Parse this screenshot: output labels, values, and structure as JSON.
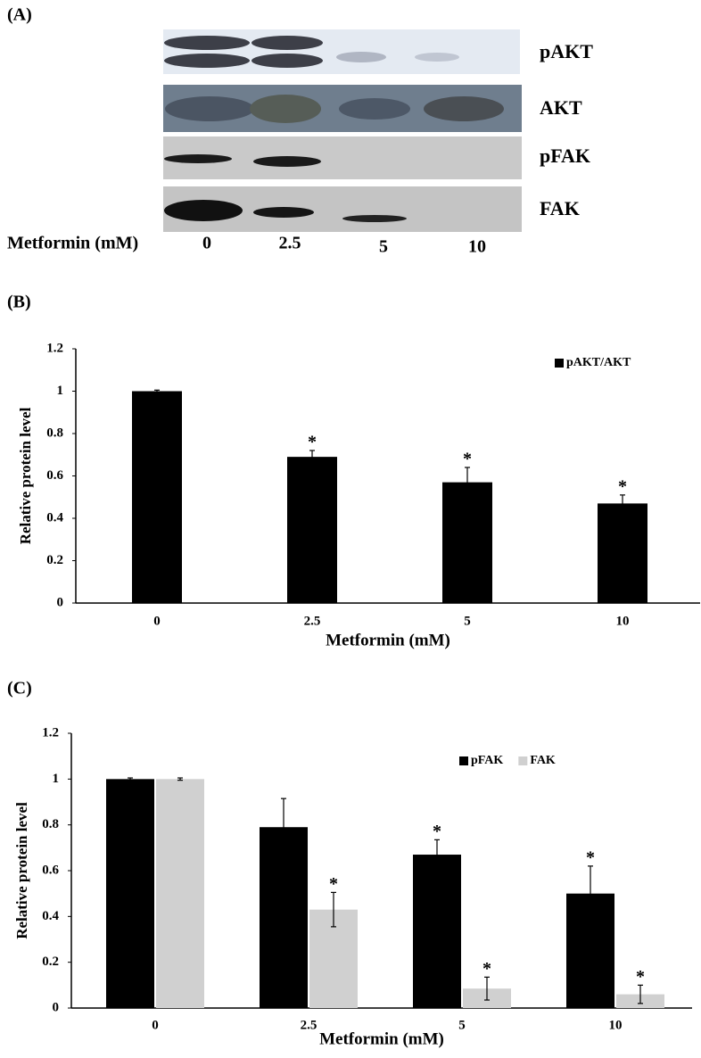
{
  "panel_a": {
    "label": "(A)",
    "rows": [
      "pAKT",
      "AKT",
      "pFAK",
      "FAK"
    ],
    "x_label": "Metformin (mM)",
    "lanes": [
      "0",
      "2.5",
      "5",
      "10"
    ]
  },
  "chart_data": [
    {
      "type": "bar",
      "panel_label": "(B)",
      "x_label": "Metformin (mM)",
      "y_label": "Relative protein level",
      "categories": [
        "0",
        "2.5",
        "5",
        "10"
      ],
      "series": [
        {
          "name": "pAKT/AKT",
          "color": "#000000",
          "values": [
            1,
            0.69,
            0.57,
            0.47
          ],
          "errors": [
            0.005,
            0.03,
            0.07,
            0.04
          ],
          "markers": [
            null,
            "*",
            "*",
            "*"
          ]
        }
      ],
      "ylim": [
        0,
        1.2
      ],
      "yticks": [
        0,
        0.2,
        0.4,
        0.6,
        0.8,
        1,
        1.2
      ],
      "grid": false,
      "legend": "upper right"
    },
    {
      "type": "bar",
      "panel_label": "(C)",
      "x_label": "Metformin (mM)",
      "y_label": "Relative protein level",
      "categories": [
        "0",
        "2.5",
        "5",
        "10"
      ],
      "series": [
        {
          "name": "pFAK",
          "color": "#000000",
          "values": [
            1,
            0.79,
            0.67,
            0.5
          ],
          "errors": [
            0.005,
            0.125,
            0.065,
            0.12
          ],
          "markers": [
            null,
            null,
            "*",
            "*"
          ]
        },
        {
          "name": "FAK",
          "color": "#d0d0d0",
          "values": [
            1,
            0.43,
            0.085,
            0.06
          ],
          "errors": [
            0.005,
            0.075,
            0.05,
            0.04
          ],
          "markers": [
            null,
            "*",
            "*",
            "*"
          ]
        }
      ],
      "ylim": [
        0,
        1.2
      ],
      "yticks": [
        0,
        0.2,
        0.4,
        0.6,
        0.8,
        1,
        1.2
      ],
      "grid": false,
      "legend": "upper right"
    }
  ]
}
